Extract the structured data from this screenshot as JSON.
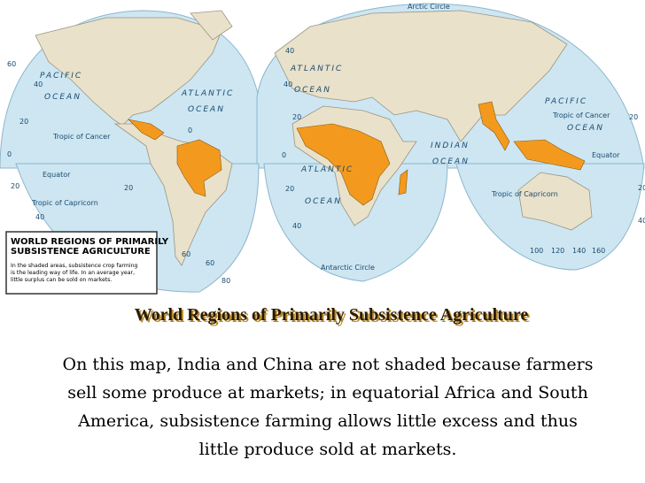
{
  "map": {
    "labels": [
      "PACIFIC",
      "OCEAN",
      "ATLANTIC",
      "OCEAN",
      "ATLANTIC",
      "OCEAN",
      "Arctic Circle",
      "INDIAN",
      "OCEAN",
      "PACIFIC",
      "OCEAN",
      "Tropic of Cancer",
      "Tropic of Cancer",
      "Equator",
      "Equator",
      "Tropic of Capricorn",
      "Tropic of Capricorn",
      "ATLANTIC",
      "OCEAN",
      "Antarctic Circle",
      "60",
      "40",
      "20",
      "0",
      "20",
      "40",
      "40",
      "20",
      "0",
      "20",
      "40",
      "60",
      "100",
      "120",
      "140",
      "160",
      "20",
      "0",
      "20",
      "40",
      "60",
      "80",
      "40",
      "20"
    ],
    "legend": {
      "title": [
        "WORLD REGIONS OF PRIMARILY",
        "SUBSISTENCE AGRICULTURE"
      ],
      "body": [
        "In the shaded areas, subsistence crop farming",
        "is the leading way of life. In an average year,",
        "little surplus can be sold on markets."
      ]
    }
  },
  "title": "World Regions of Primarily Subsistence Agriculture",
  "caption": [
    "On this map, India and China are not shaded because farmers",
    "sell some produce at markets; in equatorial Africa and South",
    "America, subsistence farming allows little excess and thus",
    "little produce sold at markets."
  ]
}
